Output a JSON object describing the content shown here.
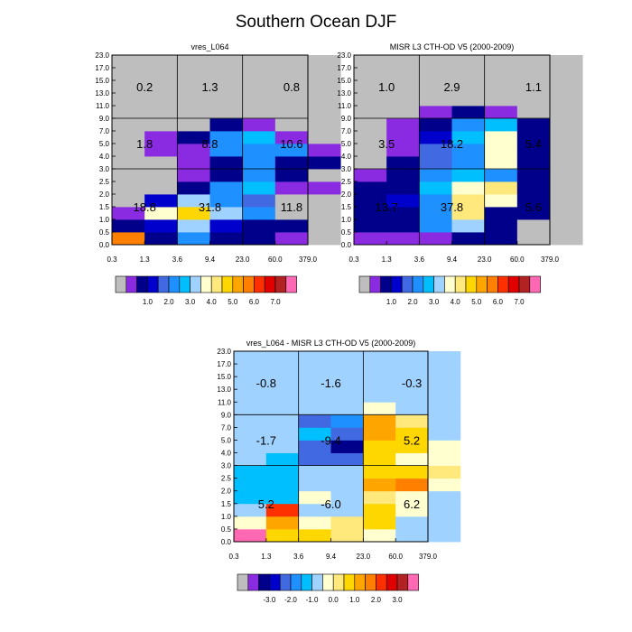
{
  "figure_title": "Southern Ocean DJF",
  "colors": {
    "missing": "#bebebe",
    "abs_palette": [
      "#8a2be2",
      "#00008b",
      "#0000cd",
      "#4169e1",
      "#1e90ff",
      "#00bfff",
      "#a0d2ff",
      "#ffffd0",
      "#ffe87c",
      "#ffd700",
      "#ffa500",
      "#ff7f00",
      "#ff3000",
      "#e00000",
      "#b22222",
      "#ff69b4"
    ],
    "diff_palette": [
      "#8a2be2",
      "#00008b",
      "#0000cd",
      "#4169e1",
      "#1e90ff",
      "#00bfff",
      "#a0d2ff",
      "#ffffd0",
      "#ffe87c",
      "#ffd700",
      "#ffa500",
      "#ff7f00",
      "#ff3000",
      "#e00000",
      "#b22222",
      "#ff69b4"
    ]
  },
  "chart_data": [
    {
      "type": "heatmap",
      "title": "vres_L064",
      "x_ticks": [
        "0.3",
        "1.3",
        "3.6",
        "9.4",
        "23.0",
        "60.0",
        "379.0"
      ],
      "y_ticks": [
        "0.0",
        "0.5",
        "1.0",
        "1.5",
        "2.0",
        "2.5",
        "3.0",
        "4.0",
        "5.0",
        "7.0",
        "9.0",
        "11.0",
        "13.0",
        "15.0",
        "17.0",
        "23.0"
      ],
      "cells": [
        [
          11,
          1,
          4,
          1,
          1,
          0,
          -1
        ],
        [
          1,
          2,
          6,
          2,
          1,
          1,
          -1
        ],
        [
          0,
          7,
          9,
          6,
          4,
          -1,
          -1
        ],
        [
          -1,
          2,
          6,
          4,
          3,
          -1,
          -1
        ],
        [
          -1,
          -1,
          1,
          4,
          5,
          0,
          0
        ],
        [
          -1,
          -1,
          0,
          1,
          4,
          1,
          -1
        ],
        [
          -1,
          -1,
          0,
          1,
          4,
          1,
          1
        ],
        [
          -1,
          0,
          0,
          4,
          4,
          4,
          0
        ],
        [
          -1,
          0,
          1,
          4,
          5,
          0,
          -1
        ],
        [
          -1,
          -1,
          -1,
          1,
          0,
          -1,
          -1
        ],
        [
          -1,
          -1,
          -1,
          -1,
          -1,
          -1,
          -1
        ],
        [
          -1,
          -1,
          -1,
          -1,
          -1,
          -1,
          -1
        ],
        [
          -1,
          -1,
          -1,
          -1,
          -1,
          -1,
          -1
        ],
        [
          -1,
          -1,
          -1,
          -1,
          -1,
          -1,
          -1
        ],
        [
          -1,
          -1,
          -1,
          -1,
          -1,
          -1,
          -1
        ]
      ],
      "group_values": [
        [
          "18.8",
          "31.8",
          "11.8"
        ],
        [
          "1.8",
          "8.8",
          "10.6"
        ],
        [
          "0.2",
          "1.3",
          "0.8"
        ]
      ],
      "legend_labels": [
        "1.0",
        "2.0",
        "3.0",
        "4.0",
        "5.0",
        "6.0",
        "7.0"
      ]
    },
    {
      "type": "heatmap",
      "title": "MISR L3 CTH-OD V5 (2000-2009)",
      "x_ticks": [
        "0.3",
        "1.3",
        "3.6",
        "9.4",
        "23.0",
        "60.0",
        "379.0"
      ],
      "y_ticks": [
        "0.0",
        "0.5",
        "1.0",
        "1.5",
        "2.0",
        "2.5",
        "3.0",
        "4.0",
        "5.0",
        "7.0",
        "9.0",
        "11.0",
        "13.0",
        "15.0",
        "17.0",
        "23.0"
      ],
      "cells": [
        [
          0,
          0,
          0,
          1,
          1,
          -1,
          -1
        ],
        [
          1,
          1,
          4,
          6,
          1,
          -1,
          -1
        ],
        [
          1,
          1,
          4,
          8,
          1,
          1,
          -1
        ],
        [
          1,
          2,
          4,
          8,
          7,
          1,
          -1
        ],
        [
          1,
          1,
          5,
          7,
          8,
          1,
          -1
        ],
        [
          0,
          1,
          4,
          5,
          4,
          1,
          -1
        ],
        [
          -1,
          1,
          3,
          4,
          7,
          1,
          -1
        ],
        [
          -1,
          0,
          3,
          4,
          7,
          1,
          -1
        ],
        [
          -1,
          0,
          2,
          5,
          7,
          1,
          -1
        ],
        [
          -1,
          0,
          1,
          4,
          5,
          1,
          -1
        ],
        [
          -1,
          -1,
          0,
          1,
          0,
          -1,
          -1
        ],
        [
          -1,
          -1,
          -1,
          -1,
          -1,
          -1,
          -1
        ],
        [
          -1,
          -1,
          -1,
          -1,
          -1,
          -1,
          -1
        ],
        [
          -1,
          -1,
          -1,
          -1,
          -1,
          -1,
          -1
        ],
        [
          -1,
          -1,
          -1,
          -1,
          -1,
          -1,
          -1
        ]
      ],
      "group_values": [
        [
          "13.7",
          "37.8",
          "5.6"
        ],
        [
          "3.5",
          "18.2",
          "5.4"
        ],
        [
          "1.0",
          "2.9",
          "1.1"
        ]
      ],
      "legend_labels": [
        "1.0",
        "2.0",
        "3.0",
        "4.0",
        "5.0",
        "6.0",
        "7.0"
      ]
    },
    {
      "type": "heatmap",
      "title": "vres_L064 - MISR L3 CTH-OD V5 (2000-2009)",
      "x_ticks": [
        "0.3",
        "1.3",
        "3.6",
        "9.4",
        "23.0",
        "60.0",
        "379.0"
      ],
      "y_ticks": [
        "0.0",
        "0.5",
        "1.0",
        "1.5",
        "2.0",
        "2.5",
        "3.0",
        "4.0",
        "5.0",
        "7.0",
        "9.0",
        "11.0",
        "13.0",
        "15.0",
        "17.0",
        "23.0"
      ],
      "cells": [
        [
          15,
          9,
          9,
          8,
          7,
          6,
          6
        ],
        [
          7,
          10,
          7,
          8,
          9,
          6,
          6
        ],
        [
          6,
          12,
          6,
          6,
          9,
          7,
          6
        ],
        [
          5,
          5,
          7,
          6,
          8,
          7,
          6
        ],
        [
          5,
          5,
          6,
          6,
          10,
          11,
          7
        ],
        [
          5,
          5,
          6,
          6,
          9,
          9,
          8
        ],
        [
          6,
          5,
          3,
          3,
          9,
          7,
          7
        ],
        [
          6,
          6,
          3,
          1,
          9,
          9,
          7
        ],
        [
          6,
          6,
          5,
          3,
          10,
          9,
          6
        ],
        [
          6,
          6,
          3,
          4,
          10,
          8,
          6
        ],
        [
          6,
          6,
          6,
          6,
          7,
          6,
          6
        ],
        [
          6,
          6,
          6,
          6,
          6,
          6,
          6
        ],
        [
          6,
          6,
          6,
          6,
          6,
          6,
          6
        ],
        [
          6,
          6,
          6,
          6,
          6,
          6,
          6
        ],
        [
          6,
          6,
          6,
          6,
          6,
          6,
          6
        ]
      ],
      "group_values": [
        [
          "5.2",
          "-6.0",
          "6.2"
        ],
        [
          "-1.7",
          "-9.4",
          "5.2"
        ],
        [
          "-0.8",
          "-1.6",
          "-0.3"
        ]
      ],
      "legend_labels": [
        "-3.0",
        "-2.0",
        "-1.0",
        "0.0",
        "1.0",
        "2.0",
        "3.0"
      ]
    }
  ]
}
